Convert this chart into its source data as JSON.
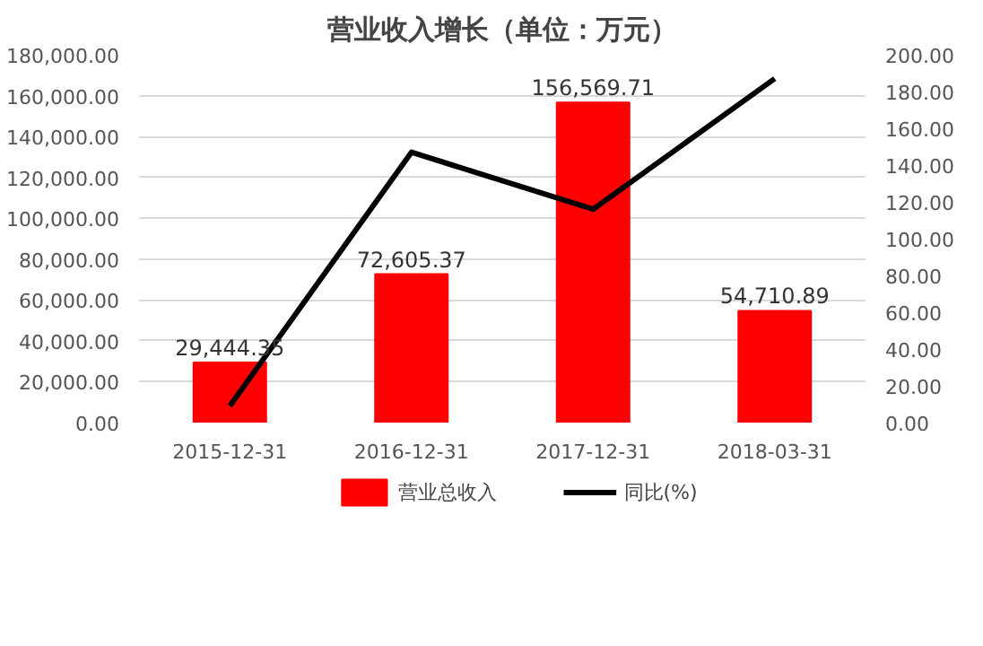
{
  "chart_data": {
    "type": "bar",
    "title": "营业收入增长（单位：万元）",
    "categories": [
      "2015-12-31",
      "2016-12-31",
      "2017-12-31",
      "2018-03-31"
    ],
    "series": [
      {
        "name": "营业总收入",
        "color": "#ff0000",
        "values": [
          29444.35,
          72605.37,
          156569.71,
          54710.89
        ],
        "value_labels": [
          "29,444.35",
          "72,605.37",
          "156,569.71",
          "54,710.89"
        ]
      },
      {
        "name": "同比(%)",
        "color": "#000000",
        "type": "line",
        "axis": "y2",
        "values": [
          9,
          147,
          116,
          187
        ],
        "marker": "none",
        "line_style": "solid"
      }
    ],
    "ylim": [
      0,
      180000
    ],
    "yticks": [
      {
        "value": 0,
        "label": "0.00"
      },
      {
        "value": 20000,
        "label": "20,000.00"
      },
      {
        "value": 40000,
        "label": "40,000.00"
      },
      {
        "value": 60000,
        "label": "60,000.00"
      },
      {
        "value": 80000,
        "label": "80,000.00"
      },
      {
        "value": 100000,
        "label": "100,000.00"
      },
      {
        "value": 120000,
        "label": "120,000.00"
      },
      {
        "value": 140000,
        "label": "140,000.00"
      },
      {
        "value": 160000,
        "label": "160,000.00"
      },
      {
        "value": 180000,
        "label": "180,000.00"
      }
    ],
    "y2lim": [
      0,
      200
    ],
    "y2ticks": [
      {
        "value": 0,
        "label": "0.00"
      },
      {
        "value": 20,
        "label": "20.00"
      },
      {
        "value": 40,
        "label": "40.00"
      },
      {
        "value": 60,
        "label": "60.00"
      },
      {
        "value": 80,
        "label": "80.00"
      },
      {
        "value": 100,
        "label": "100.00"
      },
      {
        "value": 120,
        "label": "120.00"
      },
      {
        "value": 140,
        "label": "140.00"
      },
      {
        "value": 160,
        "label": "160.00"
      },
      {
        "value": 180,
        "label": "180.00"
      },
      {
        "value": 200,
        "label": "200.00"
      }
    ],
    "grid": "y",
    "legend": "bottom"
  }
}
